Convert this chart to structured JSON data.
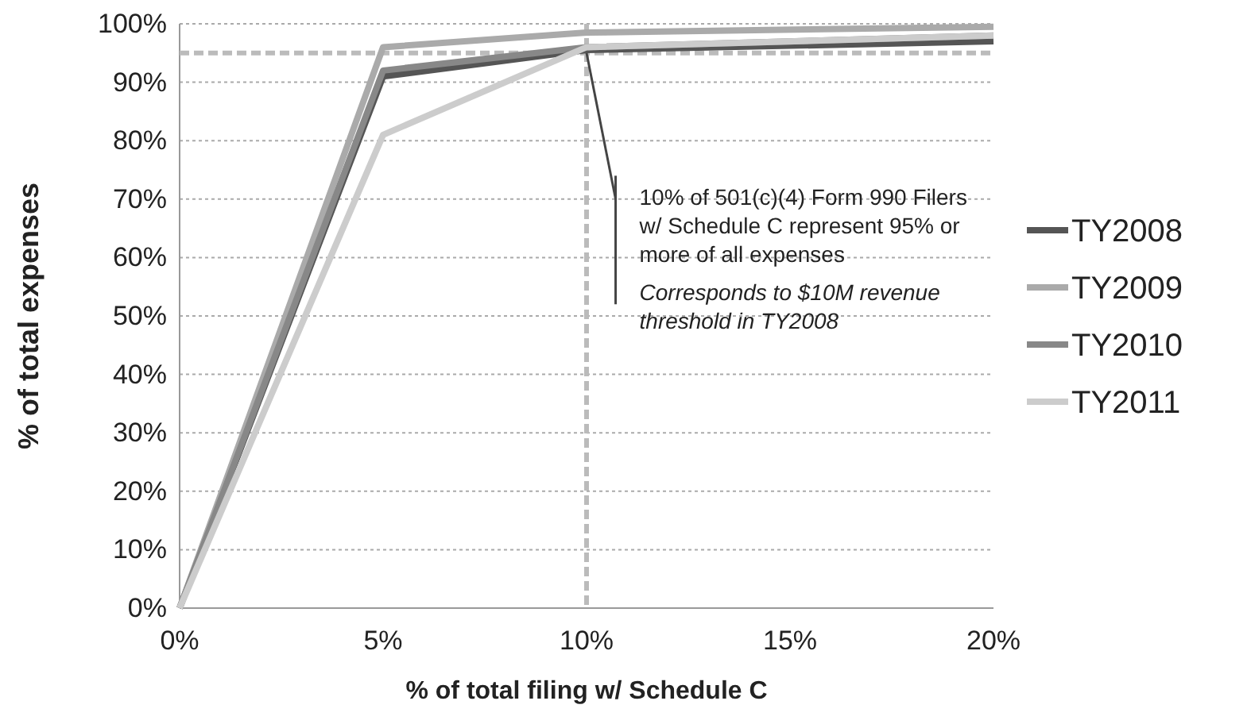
{
  "chart_data": {
    "type": "line",
    "xlabel": "% of total filing w/ Schedule C",
    "ylabel": "% of total expenses",
    "x": [
      0,
      5,
      10,
      20
    ],
    "series": [
      {
        "name": "TY2008",
        "color": "#555555",
        "values": [
          0,
          91,
          95.5,
          97
        ]
      },
      {
        "name": "TY2009",
        "color": "#aaaaaa",
        "values": [
          0,
          96,
          98.5,
          99.5
        ]
      },
      {
        "name": "TY2010",
        "color": "#888888",
        "values": [
          0,
          92,
          96,
          98
        ]
      },
      {
        "name": "TY2011",
        "color": "#cccccc",
        "values": [
          0,
          81,
          96,
          98
        ]
      }
    ],
    "xlim": [
      0,
      20
    ],
    "xticks": [
      {
        "value": 0,
        "label": "0%"
      },
      {
        "value": 5,
        "label": "5%"
      },
      {
        "value": 10,
        "label": "10%"
      },
      {
        "value": 15,
        "label": "15%"
      },
      {
        "value": 20,
        "label": "20%"
      }
    ],
    "ylim": [
      0,
      100
    ],
    "yticks": [
      {
        "value": 0,
        "label": "0%"
      },
      {
        "value": 10,
        "label": "10%"
      },
      {
        "value": 20,
        "label": "20%"
      },
      {
        "value": 30,
        "label": "30%"
      },
      {
        "value": 40,
        "label": "40%"
      },
      {
        "value": 50,
        "label": "50%"
      },
      {
        "value": 60,
        "label": "60%"
      },
      {
        "value": 70,
        "label": "70%"
      },
      {
        "value": 80,
        "label": "80%"
      },
      {
        "value": 90,
        "label": "90%"
      },
      {
        "value": 100,
        "label": "100%"
      }
    ],
    "grid": "y",
    "legend": "right",
    "marker": "none",
    "line_style": "solid",
    "ref_lines": [
      {
        "axis": "y",
        "value": 95,
        "color": "#bbbbbb",
        "line_style": "dashed"
      },
      {
        "axis": "x",
        "value": 10,
        "color": "#bbbbbb",
        "line_style": "dashed"
      }
    ],
    "annotations": [
      {
        "text": "10% of 501(c)(4) Form 990 Filers w/ Schedule C represent 95% or more of all expenses",
        "x": 10,
        "y": 95
      },
      "Corresponds to $10M revenue threshold in TY2008"
    ]
  }
}
